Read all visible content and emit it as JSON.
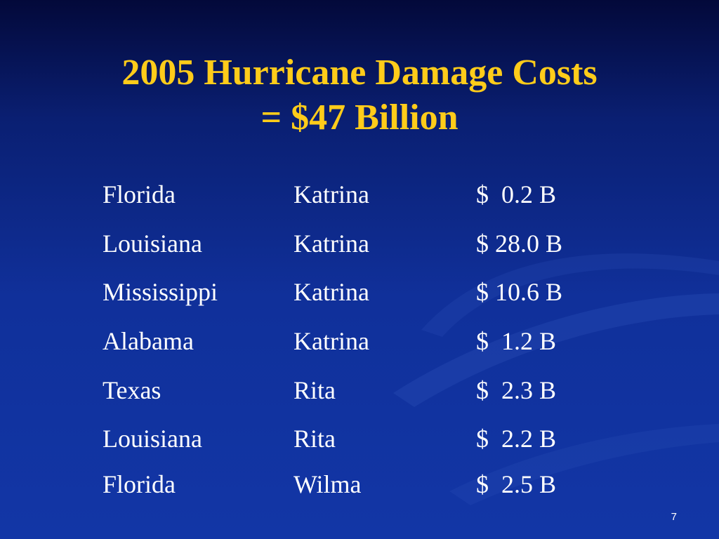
{
  "title": {
    "line1": "2005 Hurricane Damage Costs",
    "line2": "= $47 Billion"
  },
  "colors": {
    "title": "#ffcc1a",
    "text": "#ffffff",
    "background_top": "#03093a",
    "background_bottom": "#1236a6"
  },
  "rows": [
    {
      "state": "Florida",
      "storm": "Katrina",
      "cost": "$  0.2 B"
    },
    {
      "state": "Louisiana",
      "storm": "Katrina",
      "cost": "$ 28.0 B"
    },
    {
      "state": "Mississippi",
      "storm": "Katrina",
      "cost": "$ 10.6 B"
    },
    {
      "state": "Alabama",
      "storm": "Katrina",
      "cost": "$  1.2 B"
    },
    {
      "state": "Texas",
      "storm": "Rita",
      "cost": "$  2.3 B"
    },
    {
      "state": "Louisiana",
      "storm": "Rita",
      "cost": "$  2.2 B"
    },
    {
      "state": "Florida",
      "storm": "Wilma",
      "cost": "$  2.5 B"
    }
  ],
  "slide_number": "7"
}
